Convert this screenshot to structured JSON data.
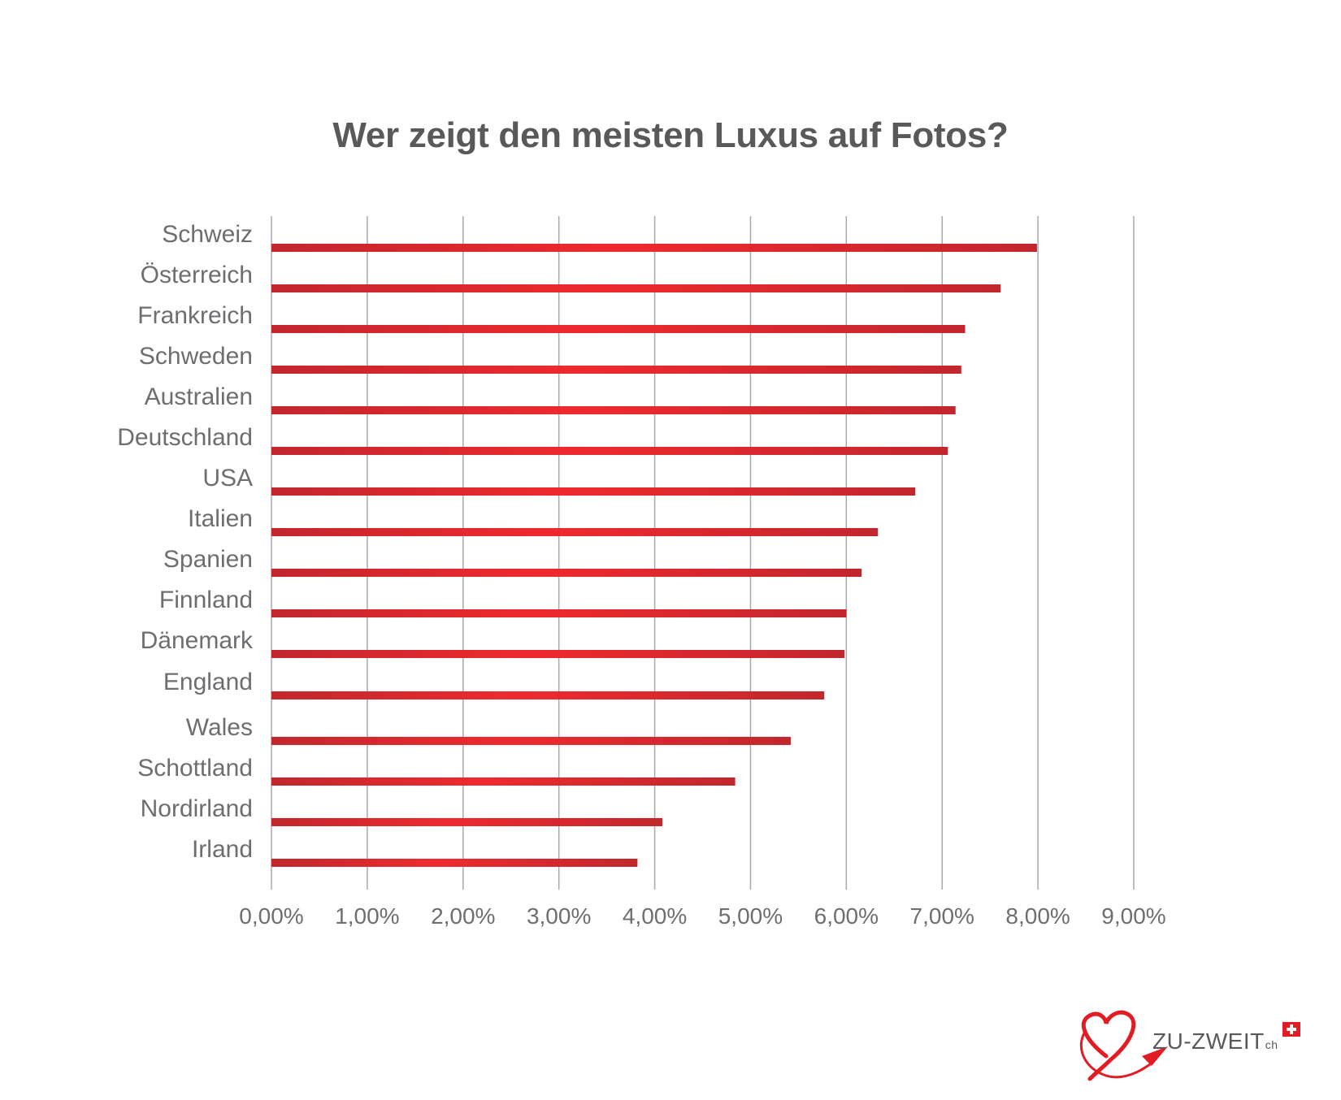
{
  "chart_data": {
    "type": "bar",
    "orientation": "horizontal",
    "title": "Wer zeigt den meisten Luxus auf Fotos?",
    "xlabel": "",
    "ylabel": "",
    "categories": [
      "Schweiz",
      "Österreich",
      "Frankreich",
      "Schweden",
      "Australien",
      "Deutschland",
      "USA",
      "Italien",
      "Spanien",
      "Finnland",
      "Dänemark",
      "England",
      "Wales",
      "Schottland",
      "Nordirland",
      "Irland"
    ],
    "values": [
      7.99,
      7.61,
      7.24,
      7.2,
      7.14,
      7.06,
      6.72,
      6.33,
      6.16,
      6.0,
      5.98,
      5.77,
      5.42,
      4.84,
      4.08,
      3.82
    ],
    "value_unit": "%",
    "xlim": [
      0,
      9
    ],
    "x_ticks": [
      "0,00%",
      "1,00%",
      "2,00%",
      "3,00%",
      "4,00%",
      "5,00%",
      "6,00%",
      "7,00%",
      "8,00%",
      "9,00%"
    ],
    "grid": "vertical",
    "legend": "none",
    "bar_color": "#e31b23",
    "bar_color_edge": "#c1272d"
  },
  "logo": {
    "name": "ZU-ZWEIT",
    "suffix": "ch"
  }
}
